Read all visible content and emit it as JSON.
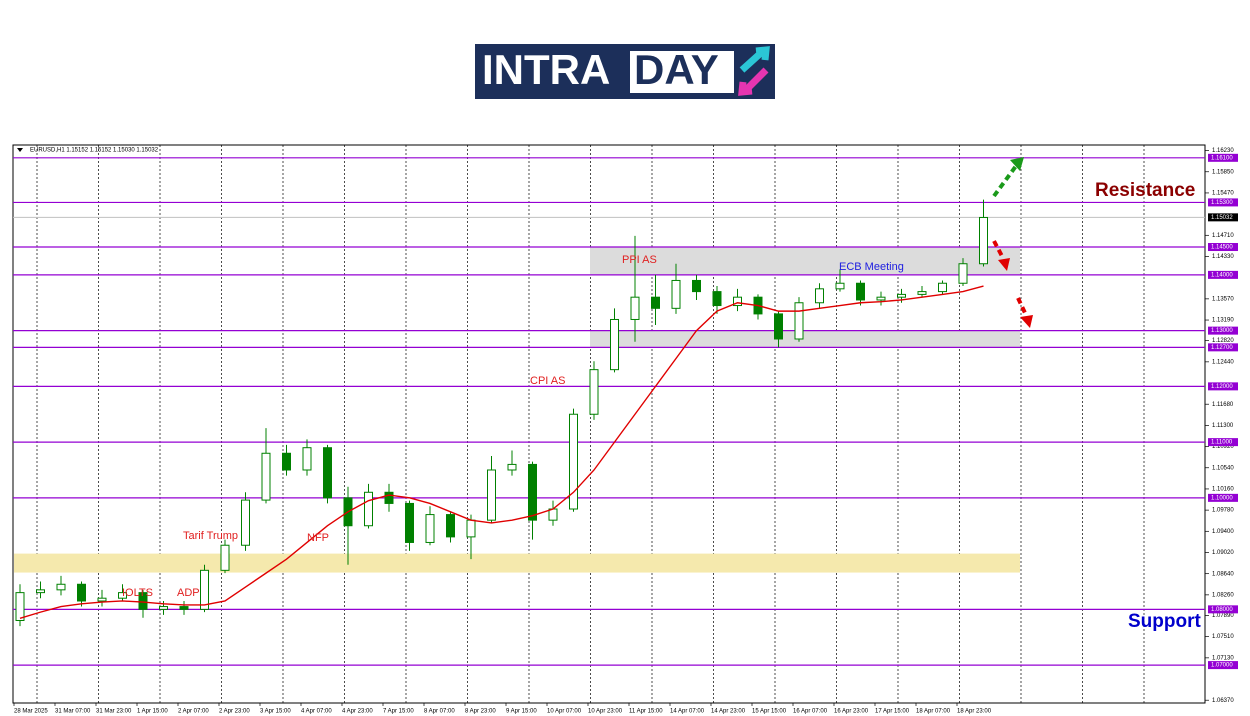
{
  "logo": {
    "left": "INTRA",
    "right": "DAY"
  },
  "chart_data": {
    "type": "candlestick",
    "title": "EURUSD,H1  1.15152 1.15152 1.15030 1.15032",
    "categories": [
      "28 Mar 2025",
      null,
      "31 Mar 07:00",
      null,
      "31 Mar 23:00",
      null,
      "1 Apr 15:00",
      null,
      "2 Apr 07:00",
      null,
      "2 Apr 23:00",
      null,
      "3 Apr 15:00",
      null,
      "4 Apr 07:00",
      null,
      "4 Apr 23:00",
      null,
      "7 Apr 15:00",
      null,
      "8 Apr 07:00",
      null,
      "8 Apr 23:00",
      null,
      "9 Apr 15:00",
      null,
      "10 Apr 07:00",
      null,
      "10 Apr 23:00",
      null,
      "11 Apr 15:00",
      null,
      "14 Apr 07:00",
      null,
      "14 Apr 23:00",
      null,
      "15 Apr 15:00",
      null,
      "16 Apr 07:00",
      null,
      "16 Apr 23:00",
      null,
      "17 Apr 15:00",
      null,
      "18 Apr 07:00",
      null,
      "18 Apr 23:00",
      null
    ],
    "open": [
      1.078,
      1.083,
      1.0835,
      1.0845,
      1.0815,
      1.082,
      1.083,
      1.08,
      1.0805,
      1.08,
      1.087,
      1.0915,
      1.0996,
      1.108,
      1.105,
      1.109,
      1.1,
      1.095,
      1.101,
      1.099,
      1.092,
      1.097,
      1.093,
      1.096,
      1.105,
      1.106,
      1.096,
      1.098,
      1.115,
      1.123,
      1.132,
      1.136,
      1.134,
      1.139,
      1.137,
      1.1345,
      1.136,
      1.133,
      1.1285,
      1.135,
      1.1375,
      1.1385,
      1.1355,
      1.136,
      1.1365,
      1.137,
      1.1385,
      1.142
    ],
    "high": [
      1.0845,
      1.085,
      1.086,
      1.085,
      1.0835,
      1.0845,
      1.0835,
      1.0815,
      1.0815,
      1.088,
      1.0925,
      1.101,
      1.1125,
      1.1095,
      1.1105,
      1.1095,
      1.102,
      1.1025,
      1.1025,
      1.0995,
      1.0985,
      1.0975,
      1.097,
      1.1075,
      1.1085,
      1.1065,
      1.0995,
      1.116,
      1.1245,
      1.134,
      1.147,
      1.14,
      1.142,
      1.14,
      1.138,
      1.1375,
      1.1365,
      1.1335,
      1.136,
      1.1385,
      1.141,
      1.139,
      1.137,
      1.1375,
      1.138,
      1.139,
      1.143,
      1.1535
    ],
    "low": [
      1.077,
      1.082,
      1.0825,
      1.0805,
      1.0805,
      1.0815,
      1.0785,
      1.079,
      1.079,
      1.0795,
      1.0865,
      1.0905,
      1.099,
      1.104,
      1.104,
      1.099,
      1.088,
      1.0945,
      1.0975,
      1.0905,
      1.0915,
      1.092,
      1.089,
      1.0955,
      1.104,
      1.0925,
      1.095,
      1.0975,
      1.114,
      1.1225,
      1.128,
      1.131,
      1.133,
      1.1355,
      1.133,
      1.1335,
      1.132,
      1.127,
      1.128,
      1.134,
      1.137,
      1.1345,
      1.1345,
      1.135,
      1.136,
      1.1365,
      1.138,
      1.1415
    ],
    "close": [
      1.083,
      1.0835,
      1.0845,
      1.0815,
      1.082,
      1.083,
      1.08,
      1.0805,
      1.08,
      1.087,
      1.0915,
      1.0996,
      1.108,
      1.105,
      1.109,
      1.1,
      1.095,
      1.101,
      1.099,
      1.092,
      1.097,
      1.093,
      1.096,
      1.105,
      1.106,
      1.096,
      1.098,
      1.115,
      1.123,
      1.132,
      1.136,
      1.134,
      1.139,
      1.137,
      1.1345,
      1.136,
      1.133,
      1.1285,
      1.135,
      1.1375,
      1.1385,
      1.1355,
      1.136,
      1.1365,
      1.137,
      1.1385,
      1.142,
      1.1503
    ],
    "ma": {
      "color": "#e00000",
      "values": [
        1.0784,
        1.0795,
        1.0805,
        1.081,
        1.0813,
        1.0815,
        1.0813,
        1.081,
        1.0808,
        1.0808,
        1.0815,
        1.084,
        1.0865,
        1.089,
        1.092,
        1.095,
        1.0975,
        1.0995,
        1.1005,
        1.1,
        1.099,
        1.0975,
        1.096,
        1.0955,
        1.096,
        1.0968,
        1.098,
        1.101,
        1.105,
        1.11,
        1.115,
        1.12,
        1.125,
        1.13,
        1.1335,
        1.135,
        1.1345,
        1.1335,
        1.1335,
        1.134,
        1.1345,
        1.135,
        1.1352,
        1.1355,
        1.136,
        1.1365,
        1.137,
        1.138
      ]
    },
    "up_color": "#ffffff",
    "down_color": "#008000",
    "candle_outline": "#008000",
    "ylim": [
      1.0632,
      1.1633
    ],
    "yticks": [
      {
        "value": 1.1623,
        "label": "1.16230"
      },
      {
        "value": 1.1585,
        "label": "1.15850"
      },
      {
        "value": 1.1547,
        "label": "1.15470"
      },
      {
        "value": 1.1471,
        "label": "1.14710"
      },
      {
        "value": 1.1433,
        "label": "1.14330"
      },
      {
        "value": 1.1357,
        "label": "1.13570"
      },
      {
        "value": 1.1319,
        "label": "1.13190"
      },
      {
        "value": 1.1282,
        "label": "1.12820"
      },
      {
        "value": 1.1244,
        "label": "1.12440"
      },
      {
        "value": 1.1168,
        "label": "1.11680"
      },
      {
        "value": 1.113,
        "label": "1.11300"
      },
      {
        "value": 1.1092,
        "label": "1.10920"
      },
      {
        "value": 1.1054,
        "label": "1.10540"
      },
      {
        "value": 1.1016,
        "label": "1.10160"
      },
      {
        "value": 1.0978,
        "label": "1.09780"
      },
      {
        "value": 1.094,
        "label": "1.09400"
      },
      {
        "value": 1.0902,
        "label": "1.09020"
      },
      {
        "value": 1.0864,
        "label": "1.08640"
      },
      {
        "value": 1.0826,
        "label": "1.08260"
      },
      {
        "value": 1.0789,
        "label": "1.07890"
      },
      {
        "value": 1.0751,
        "label": "1.07510"
      },
      {
        "value": 1.0713,
        "label": "1.07130"
      },
      {
        "value": 1.0637,
        "label": "1.06370"
      }
    ],
    "levels": [
      {
        "value": 1.161,
        "label": "1.16100"
      },
      {
        "value": 1.153,
        "label": "1.15300"
      },
      {
        "value": 1.145,
        "label": "1.14500"
      },
      {
        "value": 1.14,
        "label": "1.14000"
      },
      {
        "value": 1.13,
        "label": "1.13000"
      },
      {
        "value": 1.127,
        "label": "1.12700"
      },
      {
        "value": 1.12,
        "label": "1.12000"
      },
      {
        "value": 1.11,
        "label": "1.11000"
      },
      {
        "value": 1.1,
        "label": "1.10000"
      },
      {
        "value": 1.08,
        "label": "1.08000"
      },
      {
        "value": 1.07,
        "label": "1.07000"
      }
    ],
    "level_color": "#9400d3",
    "last": {
      "value": 1.15032,
      "label": "1.15032"
    },
    "zones": [
      {
        "from": 1.14,
        "to": 1.145,
        "color": "#dcdcdc"
      },
      {
        "from": 1.127,
        "to": 1.13,
        "color": "#dcdcdc"
      },
      {
        "from": 1.0866,
        "to": 1.09,
        "color": "#f5e9ad"
      }
    ],
    "annotations": [
      {
        "text": "IOLTS",
        "color": "#e02020"
      },
      {
        "text": "ADP",
        "color": "#e02020"
      },
      {
        "text": "Tarif Trump",
        "color": "#e02020"
      },
      {
        "text": "NFP",
        "color": "#e02020"
      },
      {
        "text": "CPI AS",
        "color": "#e02020"
      },
      {
        "text": "PPI AS",
        "color": "#e02020"
      },
      {
        "text": "ECB Meeting",
        "color": "#2020e0"
      }
    ],
    "resistance_label": "Resistance",
    "support_label": "Support"
  }
}
